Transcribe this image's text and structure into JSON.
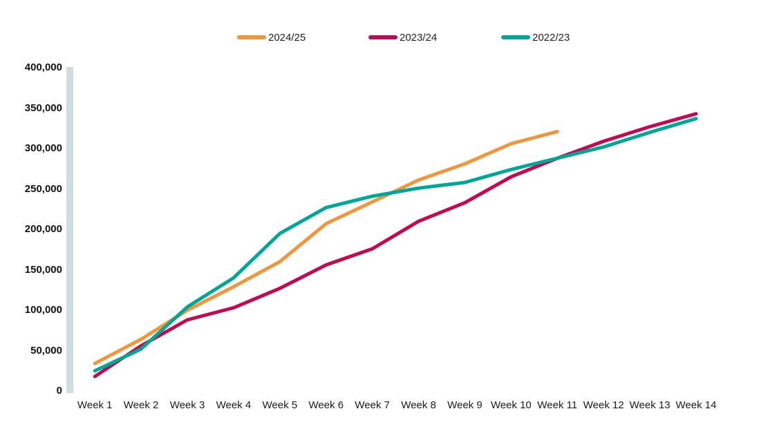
{
  "chart_data": {
    "type": "line",
    "x": [
      "Week 1",
      "Week 2",
      "Week 3",
      "Week 4",
      "Week 5",
      "Week 6",
      "Week 7",
      "Week 8",
      "Week 9",
      "Week 10",
      "Week 11",
      "Week 12",
      "Week 13",
      "Week 14"
    ],
    "series": [
      {
        "name": "2024/25",
        "color": "#F0963C",
        "values": [
          34000,
          64000,
          100000,
          129000,
          160000,
          207000,
          234000,
          261000,
          281000,
          306000,
          321000
        ]
      },
      {
        "name": "2023/24",
        "color": "#C10A52",
        "values": [
          18000,
          56000,
          88000,
          103000,
          127000,
          156000,
          176000,
          210000,
          233000,
          265000,
          288000,
          309000,
          327000,
          343000
        ]
      },
      {
        "name": "2022/23",
        "color": "#00A698",
        "values": [
          25000,
          52000,
          104000,
          140000,
          195000,
          227000,
          241000,
          251000,
          258000,
          274000,
          288000,
          302000,
          320000,
          337000
        ]
      }
    ],
    "title": "",
    "xlabel": "",
    "ylabel": "",
    "ylim": [
      0,
      400000
    ],
    "ytick_labels": [
      "0",
      "50,000",
      "100,000",
      "150,000",
      "200,000",
      "250,000",
      "300,000",
      "350,000",
      "400,000"
    ],
    "grid": false,
    "legend_position": "top"
  },
  "legend": [
    {
      "label": "2024/25",
      "color": "#F0963C"
    },
    {
      "label": "2023/24",
      "color": "#C10A52"
    },
    {
      "label": "2022/23",
      "color": "#00A698"
    }
  ],
  "axis": {
    "bar_color": "#CFDAE1"
  }
}
